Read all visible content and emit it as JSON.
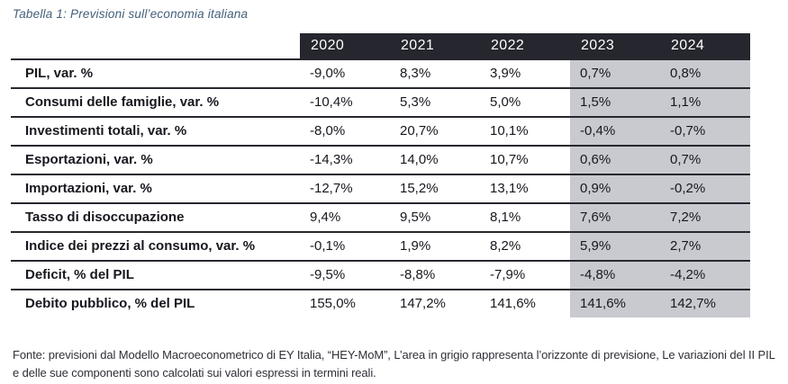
{
  "title": "Tabella 1: Previsioni sull’economia italiana",
  "colors": {
    "title_accent": "#44607b",
    "header_bg": "#26262f",
    "forecast_area_bg": "#c9c9d0",
    "text": "#17171f"
  },
  "chart_data": {
    "type": "table",
    "title": "Tabella 1: Previsioni sull’economia italiana",
    "columns": [
      "2020",
      "2021",
      "2022",
      "2023",
      "2024"
    ],
    "forecast_columns": [
      "2023",
      "2024"
    ],
    "rows": [
      {
        "label": "PIL, var. %",
        "values": [
          "-9,0%",
          "8,3%",
          "3,9%",
          "0,7%",
          "0,8%"
        ]
      },
      {
        "label": "Consumi delle famiglie, var. %",
        "values": [
          "-10,4%",
          "5,3%",
          "5,0%",
          "1,5%",
          "1,1%"
        ]
      },
      {
        "label": "Investimenti totali, var. %",
        "values": [
          "-8,0%",
          "20,7%",
          "10,1%",
          "-0,4%",
          "-0,7%"
        ]
      },
      {
        "label": "Esportazioni, var. %",
        "values": [
          "-14,3%",
          "14,0%",
          "10,7%",
          "0,6%",
          "0,7%"
        ]
      },
      {
        "label": "Importazioni, var. %",
        "values": [
          "-12,7%",
          "15,2%",
          "13,1%",
          "0,9%",
          "-0,2%"
        ]
      },
      {
        "label": "Tasso di disoccupazione",
        "values": [
          "9,4%",
          "9,5%",
          "8,1%",
          "7,6%",
          "7,2%"
        ]
      },
      {
        "label": "Indice dei prezzi al consumo, var. %",
        "values": [
          "-0,1%",
          "1,9%",
          "8,2%",
          "5,9%",
          "2,7%"
        ]
      },
      {
        "label": "Deficit, % del PIL",
        "values": [
          "-9,5%",
          "-8,8%",
          "-7,9%",
          "-4,8%",
          "-4,2%"
        ]
      },
      {
        "label": "Debito pubblico, % del PIL",
        "values": [
          "155,0%",
          "147,2%",
          "141,6%",
          "141,6%",
          "142,7%"
        ]
      }
    ]
  },
  "footnote": "Fonte: previsioni dal Modello Macroeconometrico di EY Italia, “HEY-MoM”, L’area in grigio rappresenta l’orizzonte di previsione, Le variazioni del II PIL e delle sue componenti sono calcolati sui valori espressi in termini reali."
}
